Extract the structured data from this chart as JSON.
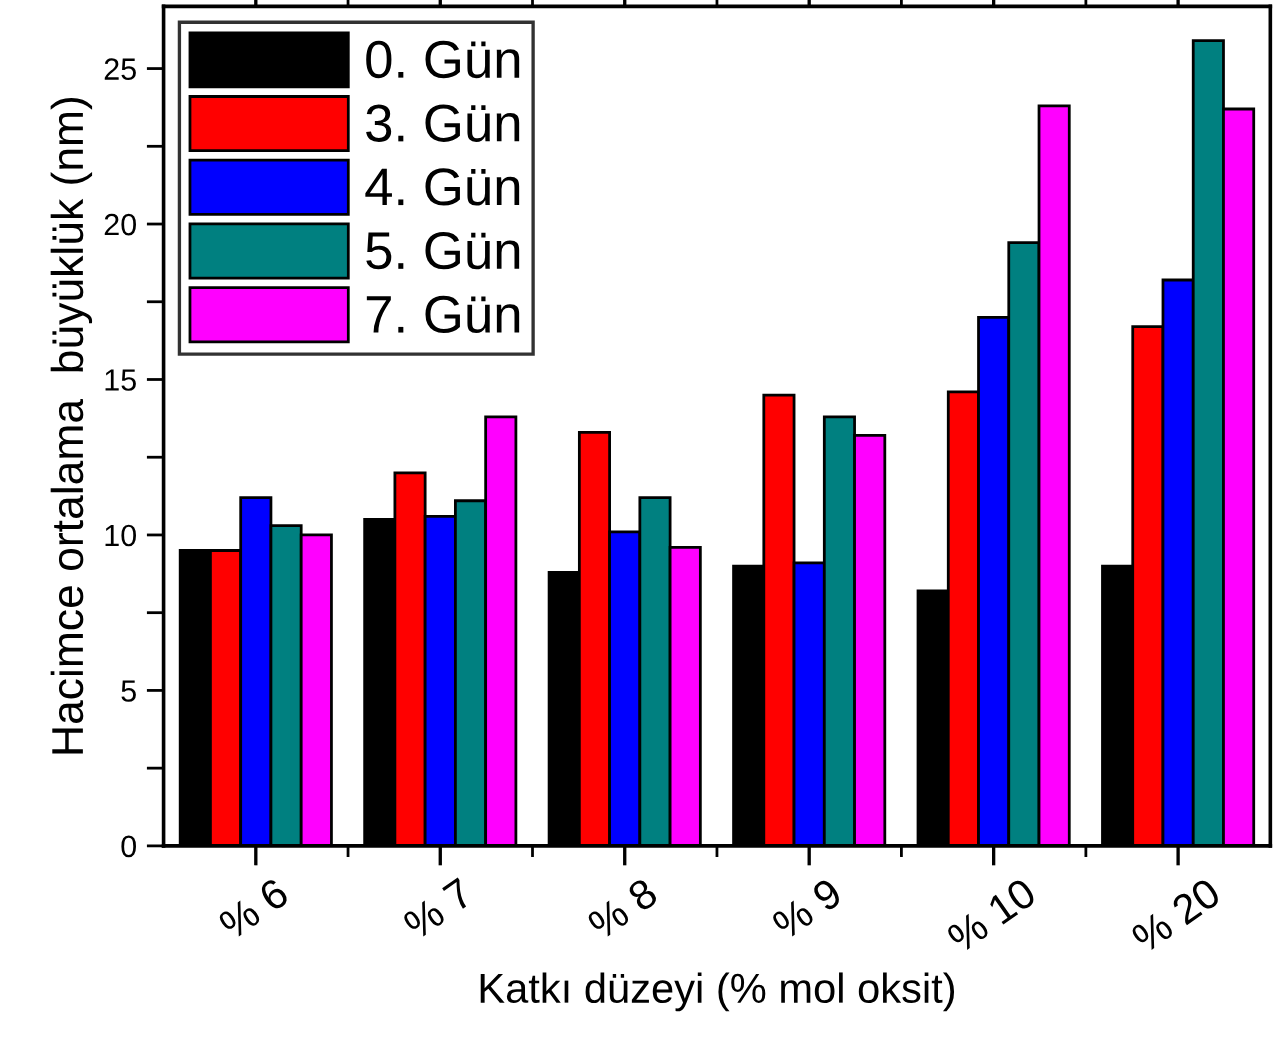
{
  "chart_data": {
    "type": "bar",
    "xlabel": "Katkı düzeyi (% mol oksit)",
    "ylabel": "Hacimce ortalama  büyüklük (nm)",
    "categories": [
      "% 6",
      "% 7",
      "% 8",
      "% 9",
      "% 10",
      "% 20"
    ],
    "series": [
      {
        "name": "0. Gün",
        "color": "#000000",
        "values": [
          9.5,
          10.5,
          8.8,
          9.0,
          8.2,
          9.0
        ]
      },
      {
        "name": "3. Gün",
        "color": "#ff0000",
        "values": [
          9.5,
          12.0,
          13.3,
          14.5,
          14.6,
          16.7
        ]
      },
      {
        "name": "4. Gün",
        "color": "#0000ff",
        "values": [
          11.2,
          10.6,
          10.1,
          9.1,
          17.0,
          18.2
        ]
      },
      {
        "name": "5. Gün",
        "color": "#008080",
        "values": [
          10.3,
          11.1,
          11.2,
          13.8,
          19.4,
          25.9
        ]
      },
      {
        "name": "7. Gün",
        "color": "#ff00ff",
        "values": [
          10.0,
          13.8,
          9.6,
          13.2,
          23.8,
          23.7
        ]
      }
    ],
    "ylim": [
      0,
      27
    ],
    "yticks": [
      0,
      {
        "value": 2.5,
        "label": null
      },
      5,
      {
        "value": 7.5,
        "label": null
      },
      10,
      {
        "value": 12.5,
        "label": null
      },
      15,
      {
        "value": 17.5,
        "label": null
      },
      20,
      {
        "value": 22.5,
        "label": null
      },
      25
    ],
    "grid": false,
    "legend": "top left"
  }
}
